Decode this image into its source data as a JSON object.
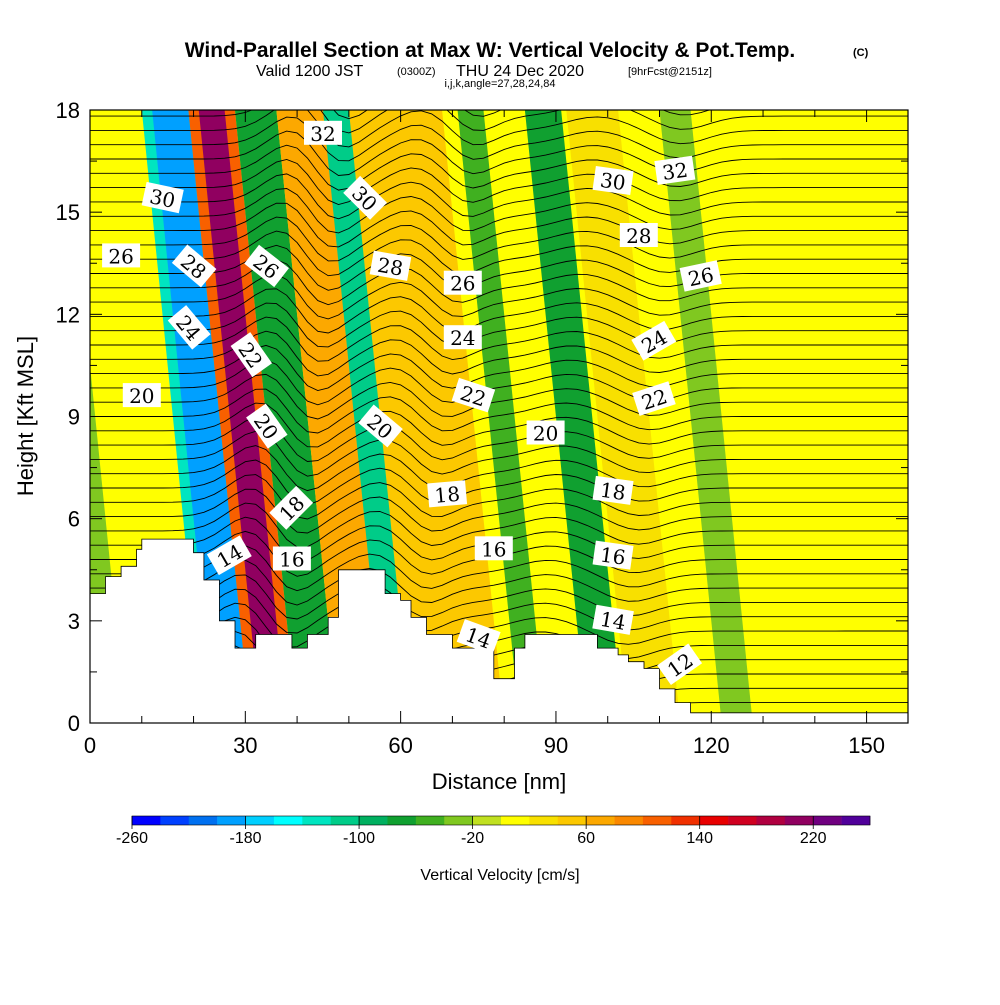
{
  "header": {
    "title": "Wind-Parallel Section at Max W: Vertical Velocity & Pot.Temp.",
    "copyright": "(C)",
    "valid_main": "Valid 1200 JST",
    "valid_utc": "(0300Z)",
    "valid_date": "THU 24 Dec 2020",
    "forecast": "[9hrFcst@2151z]",
    "indices": "i,j,k,angle=27,28,24,84"
  },
  "chart_data": {
    "type": "heatmap",
    "xlabel": "Distance [nm]",
    "ylabel": "Height [Kft MSL]",
    "xlim": [
      0,
      158
    ],
    "ylim": [
      0,
      18
    ],
    "x_ticks": [
      0,
      30,
      60,
      90,
      120,
      150
    ],
    "y_ticks": [
      0,
      3,
      6,
      9,
      12,
      15,
      18
    ],
    "colorbar": {
      "label": "Vertical Velocity [cm/s]",
      "tick_labels": [
        "-260",
        "-180",
        "-100",
        "-20",
        "60",
        "140",
        "220"
      ],
      "bins": [
        -260,
        260
      ],
      "colors": [
        "#0000ff",
        "#0040ff",
        "#0070f0",
        "#00a0ff",
        "#00cfff",
        "#00ffff",
        "#00e5c0",
        "#00cc88",
        "#00b060",
        "#10a030",
        "#40b020",
        "#80c820",
        "#c0e020",
        "#ffff00",
        "#f8e000",
        "#fcc800",
        "#fca800",
        "#fa8800",
        "#f86000",
        "#f03000",
        "#e80000",
        "#d00020",
        "#b00040",
        "#900060",
        "#700080",
        "#50009a"
      ]
    },
    "terrain": [
      [
        0,
        3.8
      ],
      [
        3,
        3.8
      ],
      [
        3,
        4.3
      ],
      [
        6,
        4.3
      ],
      [
        6,
        4.6
      ],
      [
        9,
        4.6
      ],
      [
        9,
        5.1
      ],
      [
        10,
        5.1
      ],
      [
        10,
        5.4
      ],
      [
        20,
        5.4
      ],
      [
        20,
        5.0
      ],
      [
        22,
        5.0
      ],
      [
        22,
        4.2
      ],
      [
        25,
        4.2
      ],
      [
        25,
        3.0
      ],
      [
        28,
        3.0
      ],
      [
        28,
        2.2
      ],
      [
        32,
        2.2
      ],
      [
        32,
        2.6
      ],
      [
        39,
        2.6
      ],
      [
        39,
        2.2
      ],
      [
        42,
        2.2
      ],
      [
        42,
        2.6
      ],
      [
        46,
        2.6
      ],
      [
        46,
        3.1
      ],
      [
        48,
        3.1
      ],
      [
        48,
        4.5
      ],
      [
        57,
        4.5
      ],
      [
        57,
        3.8
      ],
      [
        60,
        3.8
      ],
      [
        60,
        3.6
      ],
      [
        62,
        3.6
      ],
      [
        62,
        3.1
      ],
      [
        65,
        3.1
      ],
      [
        65,
        2.6
      ],
      [
        70,
        2.6
      ],
      [
        70,
        2.2
      ],
      [
        78,
        2.2
      ],
      [
        78,
        1.3
      ],
      [
        82,
        1.3
      ],
      [
        82,
        2.2
      ],
      [
        84,
        2.2
      ],
      [
        84,
        2.6
      ],
      [
        98,
        2.6
      ],
      [
        98,
        2.2
      ],
      [
        102,
        2.2
      ],
      [
        102,
        2.0
      ],
      [
        104,
        2.0
      ],
      [
        104,
        1.8
      ],
      [
        107,
        1.8
      ],
      [
        107,
        1.6
      ],
      [
        110,
        1.6
      ],
      [
        110,
        1.0
      ],
      [
        113,
        1.0
      ],
      [
        113,
        0.6
      ],
      [
        116,
        0.6
      ],
      [
        116,
        0.3
      ],
      [
        158,
        0.3
      ]
    ],
    "isentrope_labels": [
      {
        "text": "32",
        "x": 45,
        "y": 17.3,
        "rot": 0
      },
      {
        "text": "30",
        "x": 14,
        "y": 15.4,
        "rot": 12
      },
      {
        "text": "30",
        "x": 53,
        "y": 15.4,
        "rot": 45
      },
      {
        "text": "30",
        "x": 101,
        "y": 15.9,
        "rot": 8
      },
      {
        "text": "32",
        "x": 113,
        "y": 16.2,
        "rot": -8
      },
      {
        "text": "28",
        "x": 106,
        "y": 14.3,
        "rot": 0
      },
      {
        "text": "26",
        "x": 6,
        "y": 13.7,
        "rot": 0
      },
      {
        "text": "28",
        "x": 20,
        "y": 13.4,
        "rot": 40
      },
      {
        "text": "26",
        "x": 34,
        "y": 13.4,
        "rot": 38
      },
      {
        "text": "28",
        "x": 58,
        "y": 13.4,
        "rot": 10
      },
      {
        "text": "26",
        "x": 72,
        "y": 12.9,
        "rot": 0
      },
      {
        "text": "26",
        "x": 118,
        "y": 13.1,
        "rot": -12
      },
      {
        "text": "24",
        "x": 19,
        "y": 11.6,
        "rot": 50
      },
      {
        "text": "22",
        "x": 31,
        "y": 10.8,
        "rot": 55
      },
      {
        "text": "24",
        "x": 72,
        "y": 11.3,
        "rot": 0
      },
      {
        "text": "24",
        "x": 109,
        "y": 11.2,
        "rot": -30
      },
      {
        "text": "20",
        "x": 10,
        "y": 9.6,
        "rot": 0
      },
      {
        "text": "22",
        "x": 74,
        "y": 9.6,
        "rot": 18
      },
      {
        "text": "22",
        "x": 109,
        "y": 9.5,
        "rot": -18
      },
      {
        "text": "20",
        "x": 34,
        "y": 8.7,
        "rot": 55
      },
      {
        "text": "20",
        "x": 56,
        "y": 8.7,
        "rot": 40
      },
      {
        "text": "20",
        "x": 88,
        "y": 8.5,
        "rot": 0
      },
      {
        "text": "18",
        "x": 39,
        "y": 6.3,
        "rot": -45
      },
      {
        "text": "18",
        "x": 69,
        "y": 6.7,
        "rot": -5
      },
      {
        "text": "18",
        "x": 101,
        "y": 6.8,
        "rot": 8
      },
      {
        "text": "14",
        "x": 27,
        "y": 4.9,
        "rot": -30
      },
      {
        "text": "16",
        "x": 39,
        "y": 4.8,
        "rot": 0
      },
      {
        "text": "16",
        "x": 78,
        "y": 5.1,
        "rot": 0
      },
      {
        "text": "16",
        "x": 101,
        "y": 4.9,
        "rot": 8
      },
      {
        "text": "14",
        "x": 75,
        "y": 2.5,
        "rot": 20
      },
      {
        "text": "14",
        "x": 101,
        "y": 3.0,
        "rot": 10
      },
      {
        "text": "12",
        "x": 114,
        "y": 1.7,
        "rot": -35
      }
    ]
  }
}
